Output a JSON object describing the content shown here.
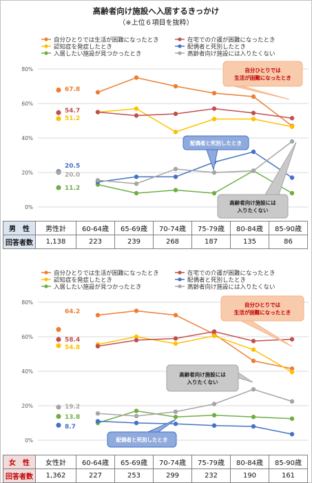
{
  "title": "高齢者向け施設へ入居するきっかけ",
  "subtitle": "（※上位６項目を抜粋）",
  "colors": {
    "alone": "#ed7d31",
    "dementia": "#ffc000",
    "found": "#70ad47",
    "home_care": "#c0504d",
    "spouse": "#4472c4",
    "dislike": "#a5a5a5"
  },
  "chart_data": [
    {
      "type": "line",
      "group": "男性",
      "categories": [
        "男性計",
        "60-64歳",
        "65-69歳",
        "70-74歳",
        "75-79歳",
        "80-84歳",
        "85-90歳"
      ],
      "ylim": [
        0,
        80
      ],
      "yticks": [
        "0%",
        "20%",
        "40%",
        "60%",
        "80%"
      ],
      "series": [
        {
          "key": "alone",
          "name": "自分ひとりでは生活が困難になったとき",
          "values": [
            67.8,
            66.5,
            75,
            70,
            66,
            64,
            47
          ]
        },
        {
          "key": "dementia",
          "name": "認知症を発症したとき",
          "values": [
            51.2,
            55,
            57,
            43.5,
            51,
            51,
            46.5
          ]
        },
        {
          "key": "found",
          "name": "入居したい施設が見つかったとき",
          "values": [
            11.2,
            13,
            8,
            9.8,
            8,
            21,
            8
          ]
        },
        {
          "key": "home_care",
          "name": "在宅での介護が困難になったとき",
          "values": [
            54.7,
            55,
            53,
            54,
            57,
            54.5,
            51.5
          ]
        },
        {
          "key": "spouse",
          "name": "配偶者と死別したとき",
          "values": [
            20.5,
            14.5,
            17.5,
            17.5,
            26,
            32,
            17
          ]
        },
        {
          "key": "dislike",
          "name": "高齢者向け施設には入りたくない",
          "values": [
            20.0,
            15.5,
            13.5,
            22,
            20,
            21,
            38
          ]
        }
      ],
      "data_labels": [
        {
          "series": "alone",
          "text": "67.8"
        },
        {
          "series": "home_care",
          "text": "54.7"
        },
        {
          "series": "dementia",
          "text": "51.2"
        },
        {
          "series": "spouse",
          "text": "20.5"
        },
        {
          "series": "dislike",
          "text": "20.0"
        },
        {
          "series": "found",
          "text": "11.2"
        }
      ],
      "callouts": [
        {
          "lines": [
            "自分ひとりでは",
            "生活が困難になったとき"
          ],
          "style": "orange"
        },
        {
          "lines": [
            "配偶者と死別したとき"
          ],
          "style": "blue"
        },
        {
          "lines": [
            "高齢者向け施設には",
            "入りたくない"
          ],
          "style": "gray"
        }
      ]
    },
    {
      "type": "line",
      "group": "女性",
      "categories": [
        "女性計",
        "60-64歳",
        "65-69歳",
        "70-74歳",
        "75-79歳",
        "80-84歳",
        "85-90歳"
      ],
      "ylim": [
        0,
        80
      ],
      "yticks": [
        "0%",
        "20%",
        "40%",
        "60%",
        "80%"
      ],
      "series": [
        {
          "key": "alone",
          "name": "自分ひとりでは生活が困難になったとき",
          "values": [
            64.2,
            72.5,
            75,
            72.5,
            61.5,
            46,
            41.5
          ]
        },
        {
          "key": "dementia",
          "name": "認知症を発症したとき",
          "values": [
            54.8,
            55.5,
            60,
            56,
            60.5,
            52.5,
            39.5
          ]
        },
        {
          "key": "found",
          "name": "入居したい施設が見つかったとき",
          "values": [
            13.8,
            10,
            17,
            13.5,
            14.5,
            13.5,
            12.5
          ]
        },
        {
          "key": "home_care",
          "name": "在宅での介護が困難になったとき",
          "values": [
            58.4,
            54.5,
            58,
            59,
            63,
            57.5,
            58.5
          ]
        },
        {
          "key": "spouse",
          "name": "配偶者と死別したとき",
          "values": [
            8.7,
            11,
            10,
            9.5,
            8.5,
            8,
            3.5
          ]
        },
        {
          "key": "dislike",
          "name": "高齢者向け施設には入りたくない",
          "values": [
            19.2,
            15.5,
            14,
            16.5,
            21,
            29.5,
            22.5
          ]
        }
      ],
      "data_labels": [
        {
          "series": "alone",
          "text": "64.2"
        },
        {
          "series": "home_care",
          "text": "58.4"
        },
        {
          "series": "dementia",
          "text": "54.8"
        },
        {
          "series": "dislike",
          "text": "19.2"
        },
        {
          "series": "found",
          "text": "13.8"
        },
        {
          "series": "spouse",
          "text": "8.7"
        }
      ],
      "callouts": [
        {
          "lines": [
            "自分ひとりでは",
            "生活が困難になったとき"
          ],
          "style": "orange"
        },
        {
          "lines": [
            "高齢者向け施設には",
            "入りたくない"
          ],
          "style": "gray"
        },
        {
          "lines": [
            "配偶者と死別したとき"
          ],
          "style": "blue"
        }
      ]
    }
  ],
  "tables": [
    {
      "sex_label": "男　性",
      "count_label": "回答者数",
      "headers": [
        "男性計",
        "60-64歳",
        "65-69歳",
        "70-74歳",
        "75-79歳",
        "80-84歳",
        "85-90歳"
      ],
      "counts": [
        "1,138",
        "223",
        "239",
        "268",
        "187",
        "135",
        "86"
      ]
    },
    {
      "sex_label": "女　性",
      "count_label": "回答者数",
      "headers": [
        "女性計",
        "60-64歳",
        "65-69歳",
        "70-74歳",
        "75-79歳",
        "80-84歳",
        "85-90歳"
      ],
      "counts": [
        "1,362",
        "227",
        "253",
        "299",
        "232",
        "190",
        "161"
      ]
    }
  ]
}
